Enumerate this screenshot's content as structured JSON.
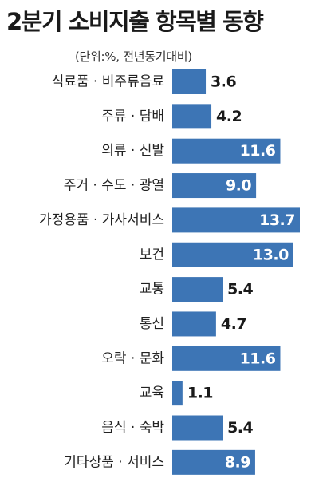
{
  "chart_data": {
    "type": "bar",
    "orientation": "horizontal",
    "title": "2분기 소비지출 항목별 동향",
    "unit_note": "(단위:%, 전년동기대비)",
    "categories": [
      "식료품 · 비주류음료",
      "주류 · 담배",
      "의류 · 신발",
      "주거 · 수도 · 광열",
      "가정용품 · 가사서비스",
      "보건",
      "교통",
      "통신",
      "오락 · 문화",
      "교육",
      "음식 · 숙박",
      "기타상품 · 서비스"
    ],
    "values": [
      3.6,
      4.2,
      11.6,
      9.0,
      13.7,
      13.0,
      5.4,
      4.7,
      11.6,
      1.1,
      5.4,
      8.9
    ],
    "value_labels": [
      "3.6",
      "4.2",
      "11.6",
      "9.0",
      "13.7",
      "13.0",
      "5.4",
      "4.7",
      "11.6",
      "1.1",
      "5.4",
      "8.9"
    ],
    "xlim": [
      0,
      13.7
    ],
    "grid": false,
    "legend": "none",
    "bar_color": "#3d75b5"
  }
}
